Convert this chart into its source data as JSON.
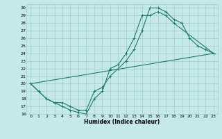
{
  "xlabel": "Humidex (Indice chaleur)",
  "bg_color": "#c5e8e8",
  "grid_color": "#9ecece",
  "line_color": "#1e7a68",
  "xlim": [
    -0.5,
    23.5
  ],
  "ylim": [
    16,
    30.5
  ],
  "xticks": [
    0,
    1,
    2,
    3,
    4,
    5,
    6,
    7,
    8,
    9,
    10,
    11,
    12,
    13,
    14,
    15,
    16,
    17,
    18,
    19,
    20,
    21,
    22,
    23
  ],
  "yticks": [
    16,
    17,
    18,
    19,
    20,
    21,
    22,
    23,
    24,
    25,
    26,
    27,
    28,
    29,
    30
  ],
  "line1_x": [
    0,
    1,
    2,
    3,
    4,
    5,
    6,
    7,
    8,
    9,
    10,
    11,
    12,
    13,
    14,
    15,
    16,
    17,
    18,
    23
  ],
  "line1_y": [
    20,
    19,
    18,
    17.5,
    17,
    16.5,
    16.2,
    16,
    18,
    19,
    22,
    22.5,
    24,
    26,
    29,
    29,
    29.5,
    29,
    28,
    24
  ],
  "line2_x": [
    0,
    23
  ],
  "line2_y": [
    20,
    24
  ],
  "line3_x": [
    0,
    1,
    2,
    3,
    4,
    5,
    6,
    7,
    8,
    9,
    10,
    11,
    12,
    13,
    14,
    15,
    16,
    17,
    18,
    19,
    20,
    21,
    22,
    23
  ],
  "line3_y": [
    20,
    19,
    18,
    17.5,
    17.5,
    17,
    16.5,
    16.5,
    19,
    19.5,
    21,
    22,
    23,
    24.5,
    27,
    30,
    30,
    29.5,
    28.5,
    28,
    26,
    25,
    24.5,
    24
  ]
}
